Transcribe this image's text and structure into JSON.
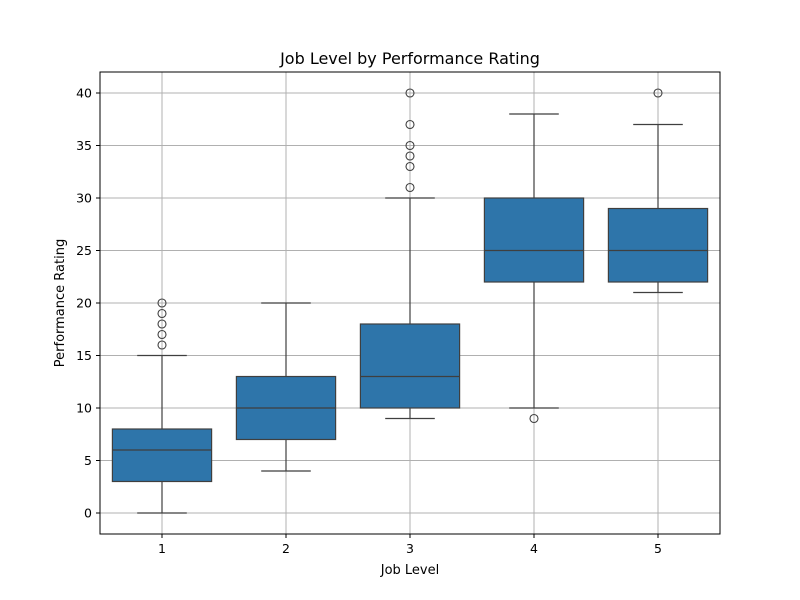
{
  "chart_data": {
    "type": "box",
    "title": "Job Level by Performance Rating",
    "xlabel": "Job Level",
    "ylabel": "Performance Rating",
    "ylim": [
      -2,
      42
    ],
    "yticks": [
      0,
      5,
      10,
      15,
      20,
      25,
      30,
      35,
      40
    ],
    "grid": true,
    "categories": [
      "1",
      "2",
      "3",
      "4",
      "5"
    ],
    "box_color": "#2e75aa",
    "line_color": "#3f3f3f",
    "boxes": [
      {
        "category": "1",
        "whisker_low": 0,
        "q1": 3,
        "median": 6,
        "q3": 8,
        "whisker_high": 15,
        "outliers": [
          16,
          17,
          18,
          19,
          20
        ]
      },
      {
        "category": "2",
        "whisker_low": 4,
        "q1": 7,
        "median": 10,
        "q3": 13,
        "whisker_high": 20,
        "outliers": []
      },
      {
        "category": "3",
        "whisker_low": 9,
        "q1": 10,
        "median": 13,
        "q3": 18,
        "whisker_high": 30,
        "outliers": [
          31,
          33,
          34,
          35,
          37,
          40
        ]
      },
      {
        "category": "4",
        "whisker_low": 10,
        "q1": 22,
        "median": 25,
        "q3": 30,
        "whisker_high": 38,
        "outliers": [
          9
        ]
      },
      {
        "category": "5",
        "whisker_low": 21,
        "q1": 22,
        "median": 25,
        "q3": 29,
        "whisker_high": 37,
        "outliers": [
          40
        ]
      }
    ]
  }
}
